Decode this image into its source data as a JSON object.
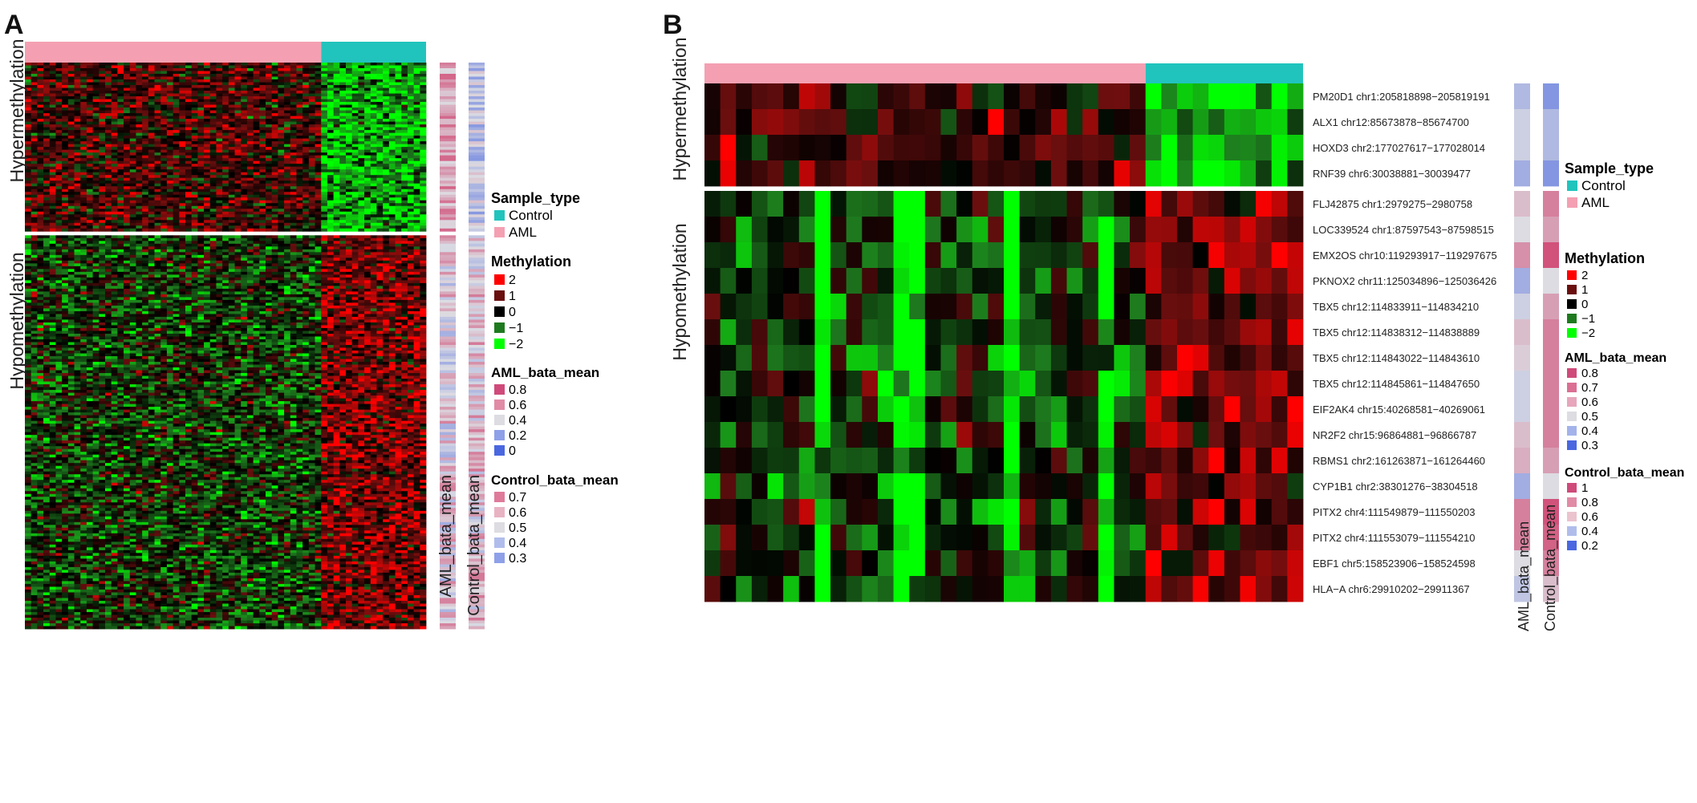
{
  "colors": {
    "aml": "#f4a0b2",
    "control": "#20c4bd",
    "methylation_scale": [
      "#ff0000",
      "#6a0e0e",
      "#000000",
      "#1e7a1e",
      "#00ff00"
    ],
    "mean_scale_high": "#d0436f",
    "mean_scale_mid": "#dcdcdc",
    "mean_scale_low": "#4a67e0"
  },
  "chart_data": [
    {
      "type": "heatmap",
      "panel": "A",
      "panel_label": "A",
      "groups": [
        {
          "name": "AML",
          "n_samples": 48
        },
        {
          "name": "Control",
          "n_samples": 17
        }
      ],
      "row_splits": [
        {
          "label": "Hypermethylation",
          "direction": "hyper",
          "n_rows": 60
        },
        {
          "label": "Hypomethylation",
          "direction": "hypo",
          "n_rows": 140
        }
      ],
      "row_labels": [],
      "side_tracks": [
        "AML_bata_mean",
        "Control_bata_mean"
      ],
      "legends": {
        "sample_type": {
          "title": "Sample_type",
          "items": [
            "Control",
            "AML"
          ]
        },
        "methylation": {
          "title": "Methylation",
          "ticks": [
            "2",
            "1",
            "0",
            "−1",
            "−2"
          ]
        },
        "aml_mean": {
          "title": "AML_bata_mean",
          "ticks": [
            "0.8",
            "0.6",
            "0.4",
            "0.2",
            "0"
          ]
        },
        "control_mean": {
          "title": "Control_bata_mean",
          "ticks": [
            "0.7",
            "0.6",
            "0.5",
            "0.4",
            "0.3"
          ]
        }
      }
    },
    {
      "type": "heatmap",
      "panel": "B",
      "panel_label": "B",
      "groups": [
        {
          "name": "AML",
          "n_samples": 28
        },
        {
          "name": "Control",
          "n_samples": 10
        }
      ],
      "row_splits": [
        {
          "label": "Hypermethylation",
          "direction": "hyper",
          "n_rows": 4
        },
        {
          "label": "Hypomethylation",
          "direction": "hypo",
          "n_rows": 16
        }
      ],
      "row_labels": [
        "PM20D1 chr1:205818898−205819191",
        "ALX1 chr12:85673878−85674700",
        "HOXD3 chr2:177027617−177028014",
        "RNF39 chr6:30038881−30039477",
        "FLJ42875 chr1:2979275−2980758",
        "LOC339524 chr1:87597543−87598515",
        "EMX2OS chr10:119293917−119297675",
        "PKNOX2 chr11:125034896−125036426",
        "TBX5 chr12:114833911−114834210",
        "TBX5 chr12:114838312−114838889",
        "TBX5 chr12:114843022−114843610",
        "TBX5 chr12:114845861−114847650",
        "EIF2AK4 chr15:40268581−40269061",
        "NR2F2 chr15:96864881−96866787",
        "RBMS1 chr2:161263871−161264460",
        "CYP1B1 chr2:38301276−38304518",
        "PITX2 chr4:111549879−111550203",
        "PITX2 chr4:111553079−111554210",
        "EBF1 chr5:158523906−158524598",
        "HLA−A chr6:29910202−29911367"
      ],
      "side_tracks": [
        "AML_bata_mean",
        "Control_bata_mean"
      ],
      "aml_mean": [
        0.35,
        0.45,
        0.45,
        0.3,
        0.6,
        0.5,
        0.75,
        0.3,
        0.45,
        0.6,
        0.55,
        0.45,
        0.45,
        0.6,
        0.65,
        0.3,
        0.8,
        0.8,
        0.5,
        0.4
      ],
      "control_mean": [
        0.2,
        0.35,
        0.35,
        0.2,
        0.8,
        0.7,
        0.95,
        0.5,
        0.7,
        0.8,
        0.8,
        0.8,
        0.8,
        0.8,
        0.7,
        0.5,
        0.95,
        0.9,
        0.8,
        0.6
      ],
      "legends": {
        "sample_type": {
          "title": "Sample_type",
          "items": [
            "Control",
            "AML"
          ]
        },
        "methylation": {
          "title": "Methylation",
          "ticks": [
            "2",
            "1",
            "0",
            "−1",
            "−2"
          ]
        },
        "aml_mean": {
          "title": "AML_bata_mean",
          "ticks": [
            "0.8",
            "0.7",
            "0.6",
            "0.5",
            "0.4",
            "0.3"
          ]
        },
        "control_mean": {
          "title": "Control_bata_mean",
          "ticks": [
            "1",
            "0.8",
            "0.6",
            "0.4",
            "0.2"
          ]
        }
      }
    }
  ]
}
